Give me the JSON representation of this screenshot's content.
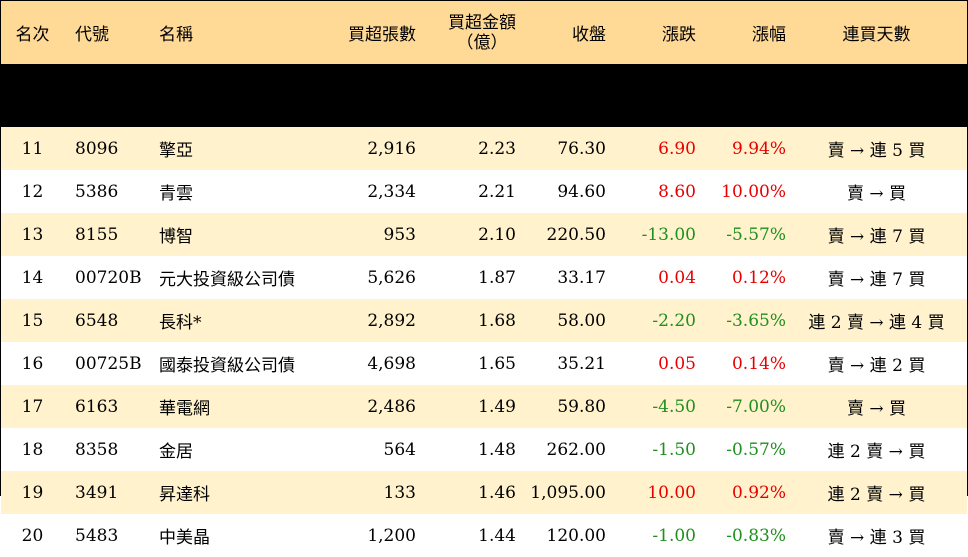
{
  "columns": [
    "名次",
    "代號",
    "名稱",
    "買超張數",
    "買超金額",
    "（億）",
    "收盤",
    "漲跌",
    "漲幅",
    "連買天數"
  ],
  "colors": {
    "header_bg": "#ffd996",
    "odd_row_bg": "#fff2cc",
    "up": "#e60000",
    "down": "#1f8f1f"
  },
  "rows": [
    {
      "rank": "11",
      "code": "8096",
      "name": "擎亞",
      "lots": "2,916",
      "amount": "2.23",
      "close": "76.30",
      "change": "6.90",
      "pct": "9.94%",
      "days": "賣 → 連 5 買",
      "dir": "up"
    },
    {
      "rank": "12",
      "code": "5386",
      "name": "青雲",
      "lots": "2,334",
      "amount": "2.21",
      "close": "94.60",
      "change": "8.60",
      "pct": "10.00%",
      "days": "賣 → 買",
      "dir": "up"
    },
    {
      "rank": "13",
      "code": "8155",
      "name": "博智",
      "lots": "953",
      "amount": "2.10",
      "close": "220.50",
      "change": "-13.00",
      "pct": "-5.57%",
      "days": "賣 → 連 7 買",
      "dir": "down"
    },
    {
      "rank": "14",
      "code": "00720B",
      "name": "元大投資級公司債",
      "lots": "5,626",
      "amount": "1.87",
      "close": "33.17",
      "change": "0.04",
      "pct": "0.12%",
      "days": "賣 → 連 7 買",
      "dir": "up"
    },
    {
      "rank": "15",
      "code": "6548",
      "name": "長科*",
      "lots": "2,892",
      "amount": "1.68",
      "close": "58.00",
      "change": "-2.20",
      "pct": "-3.65%",
      "days": "連 2 賣 → 連 4 買",
      "dir": "down"
    },
    {
      "rank": "16",
      "code": "00725B",
      "name": "國泰投資級公司債",
      "lots": "4,698",
      "amount": "1.65",
      "close": "35.21",
      "change": "0.05",
      "pct": "0.14%",
      "days": "賣 → 連 2 買",
      "dir": "up"
    },
    {
      "rank": "17",
      "code": "6163",
      "name": "華電網",
      "lots": "2,486",
      "amount": "1.49",
      "close": "59.80",
      "change": "-4.50",
      "pct": "-7.00%",
      "days": "賣 → 買",
      "dir": "down"
    },
    {
      "rank": "18",
      "code": "8358",
      "name": "金居",
      "lots": "564",
      "amount": "1.48",
      "close": "262.00",
      "change": "-1.50",
      "pct": "-0.57%",
      "days": "連 2 賣 → 買",
      "dir": "down"
    },
    {
      "rank": "19",
      "code": "3491",
      "name": "昇達科",
      "lots": "133",
      "amount": "1.46",
      "close": "1,095.00",
      "change": "10.00",
      "pct": "0.92%",
      "days": "連 2 賣 → 買",
      "dir": "up"
    },
    {
      "rank": "20",
      "code": "5483",
      "name": "中美晶",
      "lots": "1,200",
      "amount": "1.44",
      "close": "120.00",
      "change": "-1.00",
      "pct": "-0.83%",
      "days": "賣 → 連 3 買",
      "dir": "down"
    }
  ]
}
